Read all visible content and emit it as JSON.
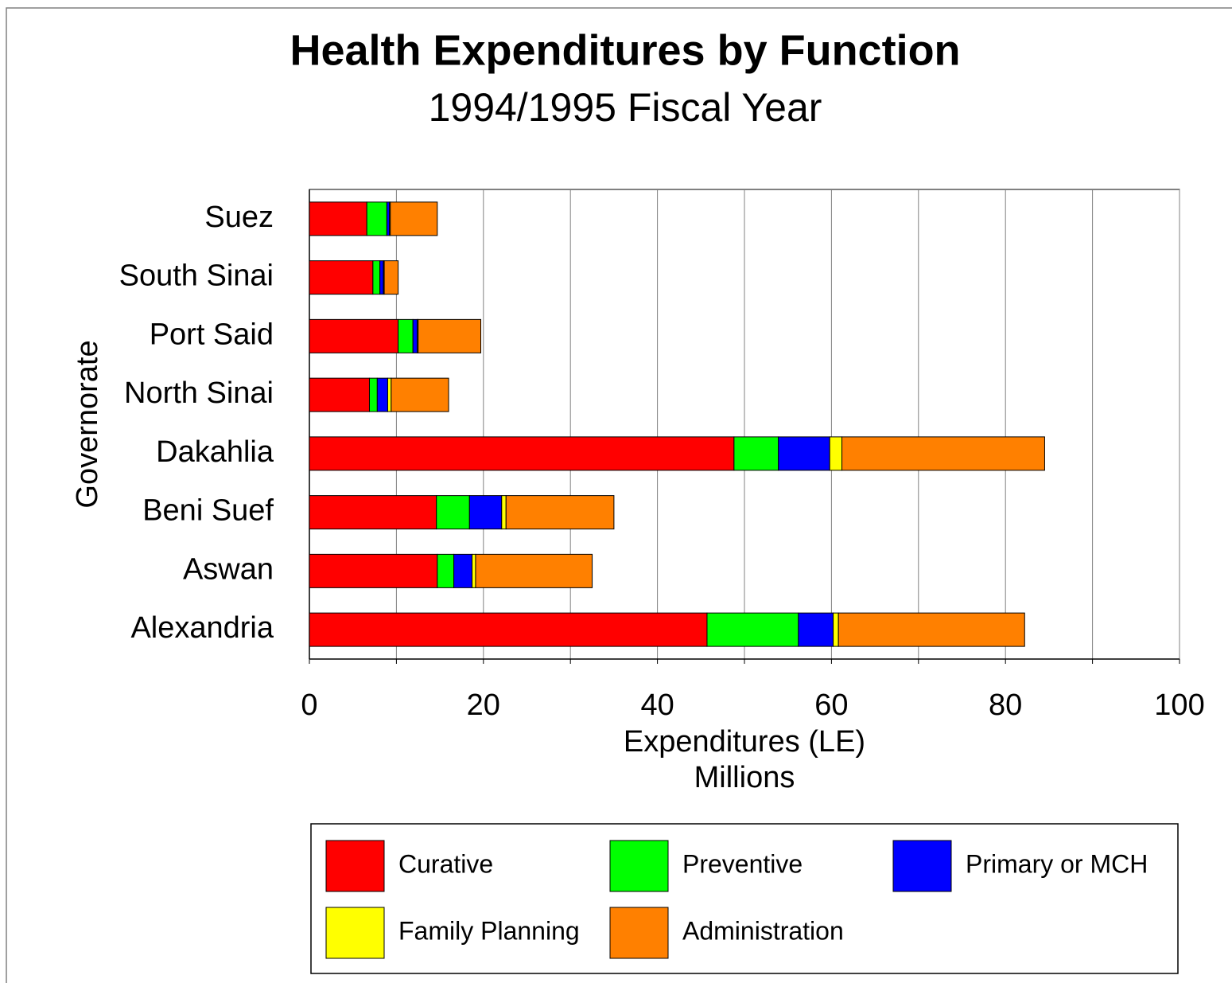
{
  "chart_data": {
    "type": "stacked_barh",
    "title": "Health Expenditures by Function",
    "subtitle": "1994/1995 Fiscal Year",
    "xlabel": [
      "Expenditures (LE)",
      "Millions"
    ],
    "ylabel": "Governorate",
    "categories": [
      "Alexandria",
      "Aswan",
      "Beni Suef",
      "Dakahlia",
      "North Sinai",
      "Port Said",
      "South Sinai",
      "Suez"
    ],
    "series": [
      {
        "name": "Curative",
        "color": "#ff0000",
        "values": [
          45.7,
          14.7,
          14.6,
          48.8,
          6.9,
          10.2,
          7.3,
          6.6
        ]
      },
      {
        "name": "Preventive",
        "color": "#00ff00",
        "values": [
          10.5,
          1.9,
          3.8,
          5.1,
          0.9,
          1.7,
          0.8,
          2.3
        ]
      },
      {
        "name": "Primary or MCH",
        "color": "#0000ff",
        "values": [
          4.0,
          2.1,
          3.7,
          5.9,
          1.2,
          0.5,
          0.4,
          0.3
        ]
      },
      {
        "name": "Family Planning",
        "color": "#ffff00",
        "values": [
          0.6,
          0.4,
          0.5,
          1.4,
          0.4,
          0.1,
          0.1,
          0.1
        ]
      },
      {
        "name": "Administration",
        "color": "#ff8000",
        "values": [
          21.4,
          13.4,
          12.4,
          23.3,
          6.6,
          7.2,
          1.6,
          5.4
        ]
      }
    ],
    "xlim": [
      0,
      100
    ],
    "xticks": [
      0,
      20,
      40,
      60,
      80,
      100
    ],
    "xminorticks": [
      10,
      30,
      50,
      70,
      90
    ],
    "grid": true
  }
}
